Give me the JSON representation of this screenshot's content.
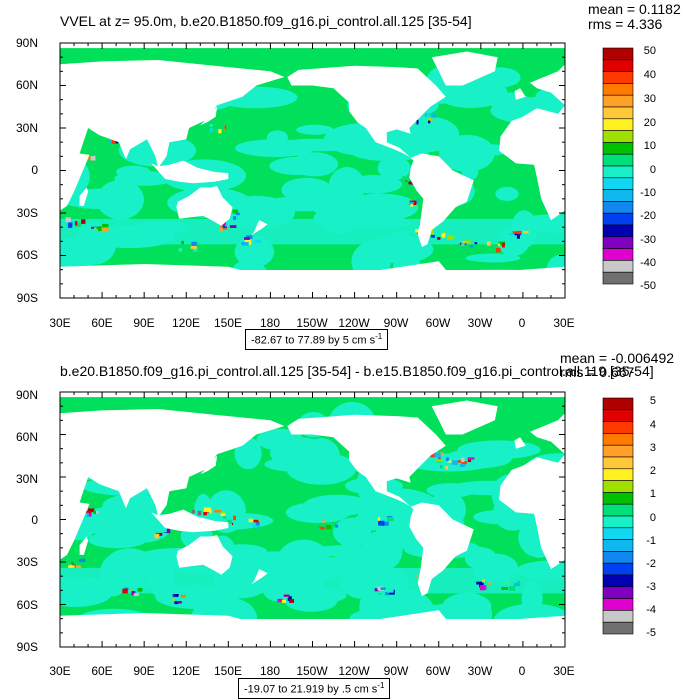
{
  "panels": [
    {
      "title": "VVEL at z=  95.0m, b.e20.B1850.f09_g16.pi_control.all.125 [35-54]",
      "mean": "mean = 0.1182",
      "rms": "rms = 4.336",
      "range_text": "-82.67 to 77.89 by 5 cm s",
      "range_exp": "-1",
      "lat_ticks": [
        "90N",
        "60N",
        "30N",
        "0",
        "30S",
        "60S",
        "90S"
      ],
      "lon_ticks": [
        "30E",
        "60E",
        "90E",
        "120E",
        "150E",
        "180",
        "150W",
        "120W",
        "90W",
        "60W",
        "30W",
        "0",
        "30E"
      ],
      "levels": [
        "50",
        "40",
        "30",
        "20",
        "10",
        "0",
        "-10",
        "-20",
        "-30",
        "-40",
        "-50"
      ]
    },
    {
      "title": "b.e20.B1850.f09_g16.pi_control.all.125 [35-54] - b.e15.B1850.f09_g16.pi_control.all.119 [35-54]",
      "mean": "mean = -0.006492",
      "rms": "rms = 0.667",
      "range_text": "-19.07 to 21.919 by .5 cm s",
      "range_exp": "-1",
      "lat_ticks": [
        "90N",
        "60N",
        "30N",
        "0",
        "30S",
        "60S",
        "90S"
      ],
      "lon_ticks": [
        "30E",
        "60E",
        "90E",
        "120E",
        "150E",
        "180",
        "150W",
        "120W",
        "90W",
        "60W",
        "30W",
        "0",
        "30E"
      ],
      "levels": [
        "5",
        "4",
        "3",
        "2",
        "1",
        "0",
        "-1",
        "-2",
        "-3",
        "-4",
        "-5"
      ]
    }
  ],
  "colors": {
    "ocean_base": "#00e05a",
    "ocean_cyan": "#18f0c8",
    "land": "#ffffff",
    "palette": [
      "#b00000",
      "#e00000",
      "#ff3a00",
      "#ff7a00",
      "#ffa028",
      "#ffc838",
      "#fff020",
      "#a0e000",
      "#00c000",
      "#00e078",
      "#18f0c8",
      "#10d8f0",
      "#10b8f0",
      "#1088f0",
      "#0040f0",
      "#0000b0",
      "#8000c0",
      "#e000d0",
      "#c8c8c8",
      "#707070"
    ]
  },
  "chart_data": [
    {
      "type": "heatmap",
      "title": "VVEL at z=  95.0m, b.e20.B1850.f09_g16.pi_control.all.125 [35-54]",
      "xlabel": "",
      "ylabel": "",
      "x_ticks": [
        "30E",
        "60E",
        "90E",
        "120E",
        "150E",
        "180",
        "150W",
        "120W",
        "90W",
        "60W",
        "30W",
        "0",
        "30E"
      ],
      "y_ticks": [
        "90N",
        "60N",
        "30N",
        "0",
        "30S",
        "60S",
        "90S"
      ],
      "colorbar_levels": [
        50,
        45,
        40,
        35,
        30,
        25,
        20,
        15,
        10,
        5,
        0,
        -5,
        -10,
        -15,
        -20,
        -25,
        -30,
        -35,
        -40,
        -45,
        -50
      ],
      "min": -82.67,
      "max": 77.89,
      "interval": 5,
      "units": "cm s-1",
      "mean": 0.1182,
      "rms": 4.336
    },
    {
      "type": "heatmap",
      "title": "b.e20.B1850.f09_g16.pi_control.all.125 [35-54] - b.e15.B1850.f09_g16.pi_control.all.119 [35-54]",
      "xlabel": "",
      "ylabel": "",
      "x_ticks": [
        "30E",
        "60E",
        "90E",
        "120E",
        "150E",
        "180",
        "150W",
        "120W",
        "90W",
        "60W",
        "30W",
        "0",
        "30E"
      ],
      "y_ticks": [
        "90N",
        "60N",
        "30N",
        "0",
        "30S",
        "60S",
        "90S"
      ],
      "colorbar_levels": [
        5,
        4.5,
        4,
        3.5,
        3,
        2.5,
        2,
        1.5,
        1,
        0.5,
        0,
        -0.5,
        -1,
        -1.5,
        -2,
        -2.5,
        -3,
        -3.5,
        -4,
        -4.5,
        -5
      ],
      "min": -19.07,
      "max": 21.919,
      "interval": 0.5,
      "units": "cm s-1",
      "mean": -0.006492,
      "rms": 0.667
    }
  ]
}
